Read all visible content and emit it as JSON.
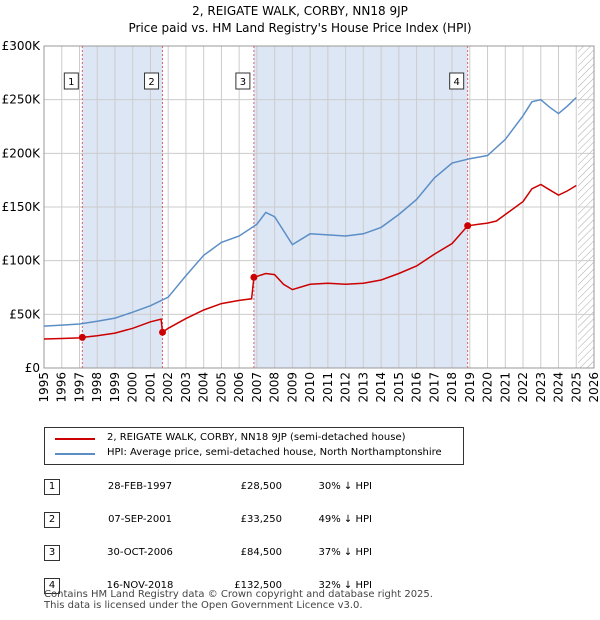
{
  "title": "2, REIGATE WALK, CORBY, NN18 9JP",
  "subtitle": "Price paid vs. HM Land Registry's House Price Index (HPI)",
  "colors": {
    "price": "#cc0000",
    "hpi": "#5b8ec7",
    "shade": "#dde6f4",
    "grid": "#cccccc",
    "vline": "#e06060"
  },
  "chart_data": {
    "type": "line",
    "xlim": [
      1995,
      2026
    ],
    "ylim": [
      0,
      300000
    ],
    "x_ticks": [
      "1995",
      "1996",
      "1997",
      "1998",
      "1999",
      "2000",
      "2001",
      "2002",
      "2003",
      "2004",
      "2005",
      "2006",
      "2007",
      "2008",
      "2009",
      "2010",
      "2011",
      "2012",
      "2013",
      "2014",
      "2015",
      "2016",
      "2017",
      "2018",
      "2019",
      "2020",
      "2021",
      "2022",
      "2023",
      "2024",
      "2025",
      "2026"
    ],
    "y_ticks": [
      {
        "v": 0,
        "label": "£0"
      },
      {
        "v": 50000,
        "label": "£50K"
      },
      {
        "v": 100000,
        "label": "£100K"
      },
      {
        "v": 150000,
        "label": "£150K"
      },
      {
        "v": 200000,
        "label": "£200K"
      },
      {
        "v": 250000,
        "label": "£250K"
      },
      {
        "v": 300000,
        "label": "£300K"
      }
    ],
    "shaded_ranges": [
      [
        1997.16,
        2001.68
      ],
      [
        2006.83,
        2018.88
      ]
    ],
    "future_hatch_from": 2025.1,
    "series": [
      {
        "name": "2, REIGATE WALK, CORBY, NN18 9JP (semi-detached house)",
        "points": [
          [
            1995.0,
            27000
          ],
          [
            1996.0,
            27500
          ],
          [
            1997.0,
            28000
          ],
          [
            1997.16,
            28500
          ],
          [
            1998.0,
            30000
          ],
          [
            1999.0,
            32500
          ],
          [
            2000.0,
            37000
          ],
          [
            2001.0,
            43000
          ],
          [
            2001.6,
            45500
          ],
          [
            2001.68,
            33250
          ],
          [
            2002.0,
            37000
          ],
          [
            2003.0,
            46000
          ],
          [
            2004.0,
            54000
          ],
          [
            2005.0,
            60000
          ],
          [
            2006.0,
            63000
          ],
          [
            2006.7,
            64500
          ],
          [
            2006.83,
            84500
          ],
          [
            2007.5,
            88000
          ],
          [
            2008.0,
            87000
          ],
          [
            2008.5,
            78000
          ],
          [
            2009.0,
            73000
          ],
          [
            2010.0,
            78000
          ],
          [
            2011.0,
            79000
          ],
          [
            2012.0,
            78000
          ],
          [
            2013.0,
            79000
          ],
          [
            2014.0,
            82000
          ],
          [
            2015.0,
            88000
          ],
          [
            2016.0,
            95000
          ],
          [
            2017.0,
            106000
          ],
          [
            2018.0,
            116000
          ],
          [
            2018.88,
            132500
          ],
          [
            2019.5,
            134000
          ],
          [
            2020.0,
            135000
          ],
          [
            2020.5,
            137000
          ],
          [
            2021.0,
            143000
          ],
          [
            2022.0,
            155000
          ],
          [
            2022.5,
            167000
          ],
          [
            2023.0,
            171000
          ],
          [
            2023.5,
            166000
          ],
          [
            2024.0,
            161000
          ],
          [
            2024.5,
            165000
          ],
          [
            2025.0,
            170000
          ]
        ]
      },
      {
        "name": "HPI: Average price, semi-detached house, North Northamptonshire",
        "points": [
          [
            1995.0,
            39000
          ],
          [
            1996.0,
            40000
          ],
          [
            1997.0,
            41000
          ],
          [
            1998.0,
            43500
          ],
          [
            1999.0,
            46500
          ],
          [
            2000.0,
            52000
          ],
          [
            2001.0,
            58000
          ],
          [
            2002.0,
            66000
          ],
          [
            2003.0,
            86000
          ],
          [
            2004.0,
            105000
          ],
          [
            2005.0,
            117000
          ],
          [
            2006.0,
            123000
          ],
          [
            2007.0,
            134000
          ],
          [
            2007.5,
            145000
          ],
          [
            2008.0,
            141000
          ],
          [
            2008.5,
            128000
          ],
          [
            2009.0,
            115000
          ],
          [
            2010.0,
            125000
          ],
          [
            2011.0,
            124000
          ],
          [
            2012.0,
            123000
          ],
          [
            2013.0,
            125000
          ],
          [
            2014.0,
            131000
          ],
          [
            2015.0,
            143000
          ],
          [
            2016.0,
            157000
          ],
          [
            2017.0,
            177000
          ],
          [
            2018.0,
            191000
          ],
          [
            2019.0,
            195000
          ],
          [
            2020.0,
            198000
          ],
          [
            2021.0,
            213000
          ],
          [
            2022.0,
            235000
          ],
          [
            2022.5,
            248000
          ],
          [
            2023.0,
            250000
          ],
          [
            2023.5,
            243000
          ],
          [
            2024.0,
            237000
          ],
          [
            2024.5,
            244000
          ],
          [
            2025.0,
            252000
          ]
        ]
      }
    ],
    "sales": [
      {
        "label": "1",
        "x": 1997.16,
        "price": 28500
      },
      {
        "label": "2",
        "x": 2001.68,
        "price": 33250
      },
      {
        "label": "3",
        "x": 2006.83,
        "price": 84500
      },
      {
        "label": "4",
        "x": 2018.88,
        "price": 132500
      }
    ]
  },
  "legend": {
    "price_label": "2, REIGATE WALK, CORBY, NN18 9JP (semi-detached house)",
    "hpi_label": "HPI: Average price, semi-detached house, North Northamptonshire"
  },
  "transactions": [
    {
      "num": "1",
      "date": "28-FEB-1997",
      "price": "£28,500",
      "hpi": "30% ↓ HPI"
    },
    {
      "num": "2",
      "date": "07-SEP-2001",
      "price": "£33,250",
      "hpi": "49% ↓ HPI"
    },
    {
      "num": "3",
      "date": "30-OCT-2006",
      "price": "£84,500",
      "hpi": "37% ↓ HPI"
    },
    {
      "num": "4",
      "date": "16-NOV-2018",
      "price": "£132,500",
      "hpi": "32% ↓ HPI"
    }
  ],
  "footer": {
    "line1": "Contains HM Land Registry data © Crown copyright and database right 2025.",
    "line2": "This data is licensed under the Open Government Licence v3.0."
  }
}
